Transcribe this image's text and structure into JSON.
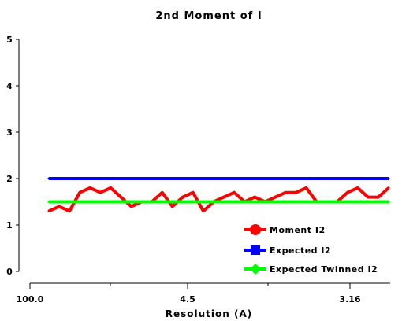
{
  "chart_data": {
    "type": "line",
    "title": "2nd Moment of I",
    "xlabel": "Resolution (A)",
    "ylabel": "",
    "ylim": [
      0,
      5
    ],
    "yticks": [
      "0",
      "1",
      "2",
      "3",
      "4",
      "5"
    ],
    "xticks": [
      "100.0",
      "4.5",
      "3.16"
    ],
    "grid": false,
    "legend_position": "bottom-right",
    "series": [
      {
        "name": "Moment I2",
        "color": "#ff0000",
        "marker": "circle",
        "values": [
          1.3,
          1.4,
          1.3,
          1.7,
          1.8,
          1.7,
          1.8,
          1.6,
          1.4,
          1.5,
          1.5,
          1.7,
          1.4,
          1.6,
          1.7,
          1.3,
          1.5,
          1.6,
          1.7,
          1.5,
          1.6,
          1.5,
          1.6,
          1.7,
          1.7,
          1.8,
          1.5,
          1.5,
          1.5,
          1.7,
          1.8,
          1.6,
          1.6,
          1.8
        ]
      },
      {
        "name": "Expected I2",
        "color": "#0000ff",
        "marker": "square",
        "values": [
          2.0,
          2.0
        ]
      },
      {
        "name": "Expected Twinned I2",
        "color": "#00ff00",
        "marker": "diamond",
        "values": [
          1.5,
          1.5
        ]
      }
    ]
  }
}
